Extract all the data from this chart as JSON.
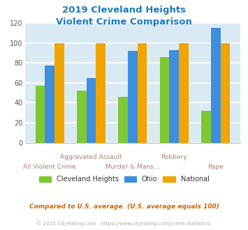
{
  "title_line1": "2019 Cleveland Heights",
  "title_line2": "Violent Crime Comparison",
  "title_color": "#1a7abf",
  "series": {
    "Cleveland Heights": [
      57,
      52,
      46,
      86,
      32
    ],
    "Ohio": [
      77,
      65,
      92,
      93,
      115
    ],
    "National": [
      100,
      100,
      100,
      100,
      100
    ]
  },
  "colors": {
    "Cleveland Heights": "#7ec832",
    "Ohio": "#3d8fde",
    "National": "#f0a500"
  },
  "upper_labels": [
    [
      1,
      "Aggravated Assault"
    ],
    [
      3,
      "Robbery"
    ]
  ],
  "lower_labels": [
    [
      0,
      "All Violent Crime"
    ],
    [
      2,
      "Murder & Mans..."
    ],
    [
      4,
      "Rape"
    ]
  ],
  "label_color": "#b08070",
  "ylim": [
    0,
    120
  ],
  "yticks": [
    0,
    20,
    40,
    60,
    80,
    100,
    120
  ],
  "background_color": "#daeaf2",
  "grid_color": "#ffffff",
  "legend_labels": [
    "Cleveland Heights",
    "Ohio",
    "National"
  ],
  "footnote1": "Compared to U.S. average. (U.S. average equals 100)",
  "footnote2": "© 2025 CityRating.com - https://www.cityrating.com/crime-statistics/",
  "footnote1_color": "#cc6600",
  "footnote2_color": "#aaaaaa"
}
